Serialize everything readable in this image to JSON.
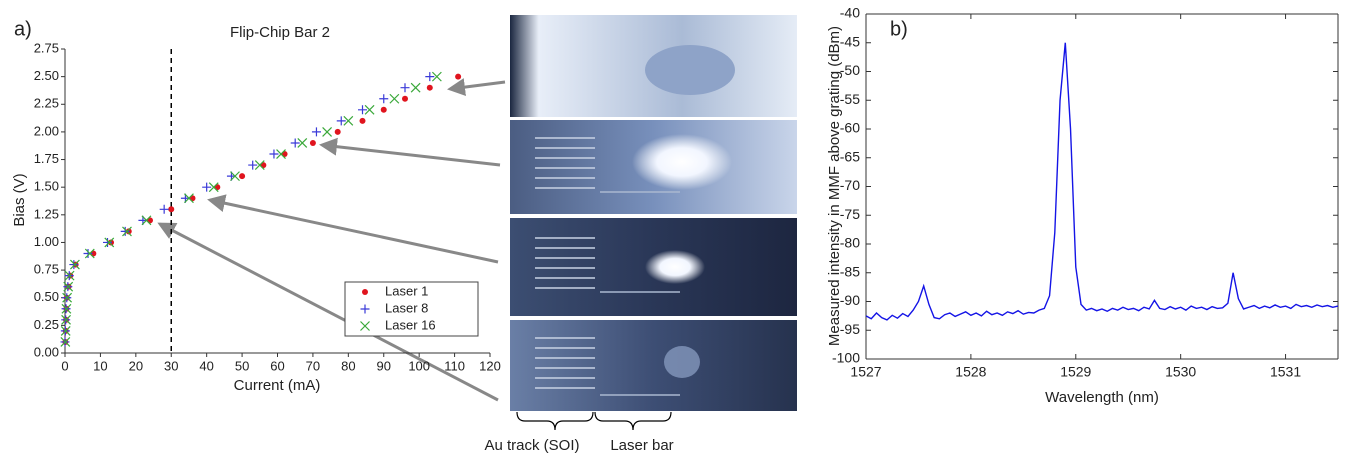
{
  "chart_data": [
    {
      "type": "scatter",
      "panel_label": "a)",
      "title": "Flip-Chip Bar 2",
      "xlabel": "Current (mA)",
      "ylabel": "Bias (V)",
      "xlim": [
        0,
        120
      ],
      "xticks": [
        0,
        10,
        20,
        30,
        40,
        50,
        60,
        70,
        80,
        90,
        100,
        110,
        120
      ],
      "ylim": [
        0,
        2.75
      ],
      "yticks": [
        {
          "value": 0,
          "label": "0.00"
        },
        {
          "value": 0.25,
          "label": "0.25"
        },
        {
          "value": 0.5,
          "label": "0.50"
        },
        {
          "value": 0.75,
          "label": "0.75"
        },
        {
          "value": 1,
          "label": "1.00"
        },
        {
          "value": 1.25,
          "label": "1.25"
        },
        {
          "value": 1.5,
          "label": "1.50"
        },
        {
          "value": 1.75,
          "label": "1.75"
        },
        {
          "value": 2,
          "label": "2.00"
        },
        {
          "value": 2.25,
          "label": "2.25"
        },
        {
          "value": 2.5,
          "label": "2.50"
        },
        {
          "value": 2.75,
          "label": "2.75"
        }
      ],
      "vline": 30,
      "legend": "lower right",
      "series": [
        {
          "name": "Laser 1",
          "color": "#e0141e",
          "marker": "dot",
          "x": [
            0.1,
            0.2,
            0.3,
            0.4,
            0.5,
            1,
            1.5,
            3,
            8,
            13,
            18,
            24,
            30,
            36,
            43,
            50,
            56,
            62,
            70,
            77,
            84,
            90,
            96,
            103,
            111
          ],
          "values": [
            0.1,
            0.2,
            0.3,
            0.4,
            0.5,
            0.6,
            0.7,
            0.8,
            0.9,
            1.0,
            1.1,
            1.2,
            1.3,
            1.4,
            1.5,
            1.6,
            1.7,
            1.8,
            1.9,
            2.0,
            2.1,
            2.2,
            2.3,
            2.4,
            2.5
          ]
        },
        {
          "name": "Laser 8",
          "color": "#3a3ad8",
          "marker": "plus",
          "x": [
            0,
            0.1,
            0.2,
            0.3,
            0.5,
            0.8,
            1.2,
            2.5,
            6.5,
            12,
            17,
            22,
            28,
            34,
            40,
            47,
            53,
            59,
            65,
            71,
            78,
            84,
            90,
            96,
            103
          ],
          "values": [
            0.1,
            0.2,
            0.3,
            0.4,
            0.5,
            0.6,
            0.7,
            0.8,
            0.9,
            1.0,
            1.1,
            1.2,
            1.3,
            1.4,
            1.5,
            1.6,
            1.7,
            1.8,
            1.9,
            2.0,
            2.1,
            2.2,
            2.3,
            2.4,
            2.5
          ]
        },
        {
          "name": "Laser 16",
          "color": "#3aa83a",
          "marker": "cross",
          "x": [
            0.1,
            0.2,
            0.3,
            0.4,
            0.6,
            0.9,
            1.3,
            2.8,
            7,
            12.5,
            17.5,
            23,
            35,
            42,
            48,
            55,
            61,
            67,
            74,
            80,
            86,
            93,
            99,
            105
          ],
          "values": [
            0.1,
            0.2,
            0.3,
            0.4,
            0.5,
            0.6,
            0.7,
            0.8,
            0.9,
            1.0,
            1.1,
            1.2,
            1.4,
            1.5,
            1.6,
            1.7,
            1.8,
            1.9,
            2.0,
            2.1,
            2.2,
            2.3,
            2.4,
            2.5
          ]
        }
      ]
    },
    {
      "type": "line",
      "panel_label": "b)",
      "xlabel": "Wavelength (nm)",
      "ylabel": "Measured intensity in MMF above grating (dBm)",
      "xlim": [
        1527,
        1531.5
      ],
      "xticks": [
        1527,
        1528,
        1529,
        1530,
        1531
      ],
      "ylim": [
        -100,
        -40
      ],
      "yticks": [
        -100,
        -95,
        -90,
        -85,
        -80,
        -75,
        -70,
        -65,
        -60,
        -55,
        -50,
        -45,
        -40
      ],
      "color": "#1414e6",
      "x": [
        1527,
        1527.05,
        1527.1,
        1527.15,
        1527.2,
        1527.25,
        1527.3,
        1527.35,
        1527.4,
        1527.45,
        1527.5,
        1527.55,
        1527.6,
        1527.65,
        1527.7,
        1527.75,
        1527.8,
        1527.85,
        1527.9,
        1527.95,
        1528,
        1528.05,
        1528.1,
        1528.15,
        1528.2,
        1528.25,
        1528.3,
        1528.35,
        1528.4,
        1528.45,
        1528.5,
        1528.55,
        1528.6,
        1528.65,
        1528.7,
        1528.75,
        1528.8,
        1528.85,
        1528.9,
        1528.95,
        1529,
        1529.05,
        1529.1,
        1529.15,
        1529.2,
        1529.25,
        1529.3,
        1529.35,
        1529.4,
        1529.45,
        1529.5,
        1529.55,
        1529.6,
        1529.65,
        1529.7,
        1529.75,
        1529.8,
        1529.85,
        1529.9,
        1529.95,
        1530,
        1530.05,
        1530.1,
        1530.15,
        1530.2,
        1530.25,
        1530.3,
        1530.35,
        1530.4,
        1530.45,
        1530.5,
        1530.55,
        1530.6,
        1530.65,
        1530.7,
        1530.75,
        1530.8,
        1530.85,
        1530.9,
        1530.95,
        1531,
        1531.05,
        1531.1,
        1531.15,
        1531.2,
        1531.25,
        1531.3,
        1531.35,
        1531.4,
        1531.45,
        1531.5
      ],
      "values": [
        -92.5,
        -93,
        -92,
        -92.8,
        -93.2,
        -92.4,
        -92.9,
        -92.1,
        -92.6,
        -91.5,
        -90,
        -87.3,
        -90.5,
        -92.8,
        -93,
        -92.3,
        -92,
        -92.6,
        -92.2,
        -91.8,
        -92.4,
        -92,
        -92.5,
        -91.7,
        -92.3,
        -92,
        -92.4,
        -91.8,
        -92.1,
        -91.6,
        -92.2,
        -91.9,
        -92,
        -91.5,
        -91.2,
        -89,
        -78,
        -55,
        -45,
        -60,
        -84,
        -90.5,
        -91.5,
        -91.2,
        -91.6,
        -91.3,
        -91.7,
        -91.2,
        -91.5,
        -91,
        -91.4,
        -91.2,
        -91.6,
        -91,
        -91.3,
        -89.8,
        -91.2,
        -91.4,
        -90.9,
        -91.3,
        -91,
        -91.5,
        -90.8,
        -91.2,
        -91,
        -91.4,
        -90.9,
        -91.2,
        -91.1,
        -90.3,
        -85,
        -89.5,
        -91.3,
        -91,
        -90.7,
        -91.2,
        -90.8,
        -91.1,
        -90.6,
        -91,
        -90.8,
        -91.2,
        -90.5,
        -90.9,
        -90.7,
        -91,
        -90.6,
        -90.9,
        -90.7,
        -91,
        -90.8
      ]
    }
  ],
  "photo_labels": [
    "Au track (SOI)",
    "Laser bar"
  ]
}
